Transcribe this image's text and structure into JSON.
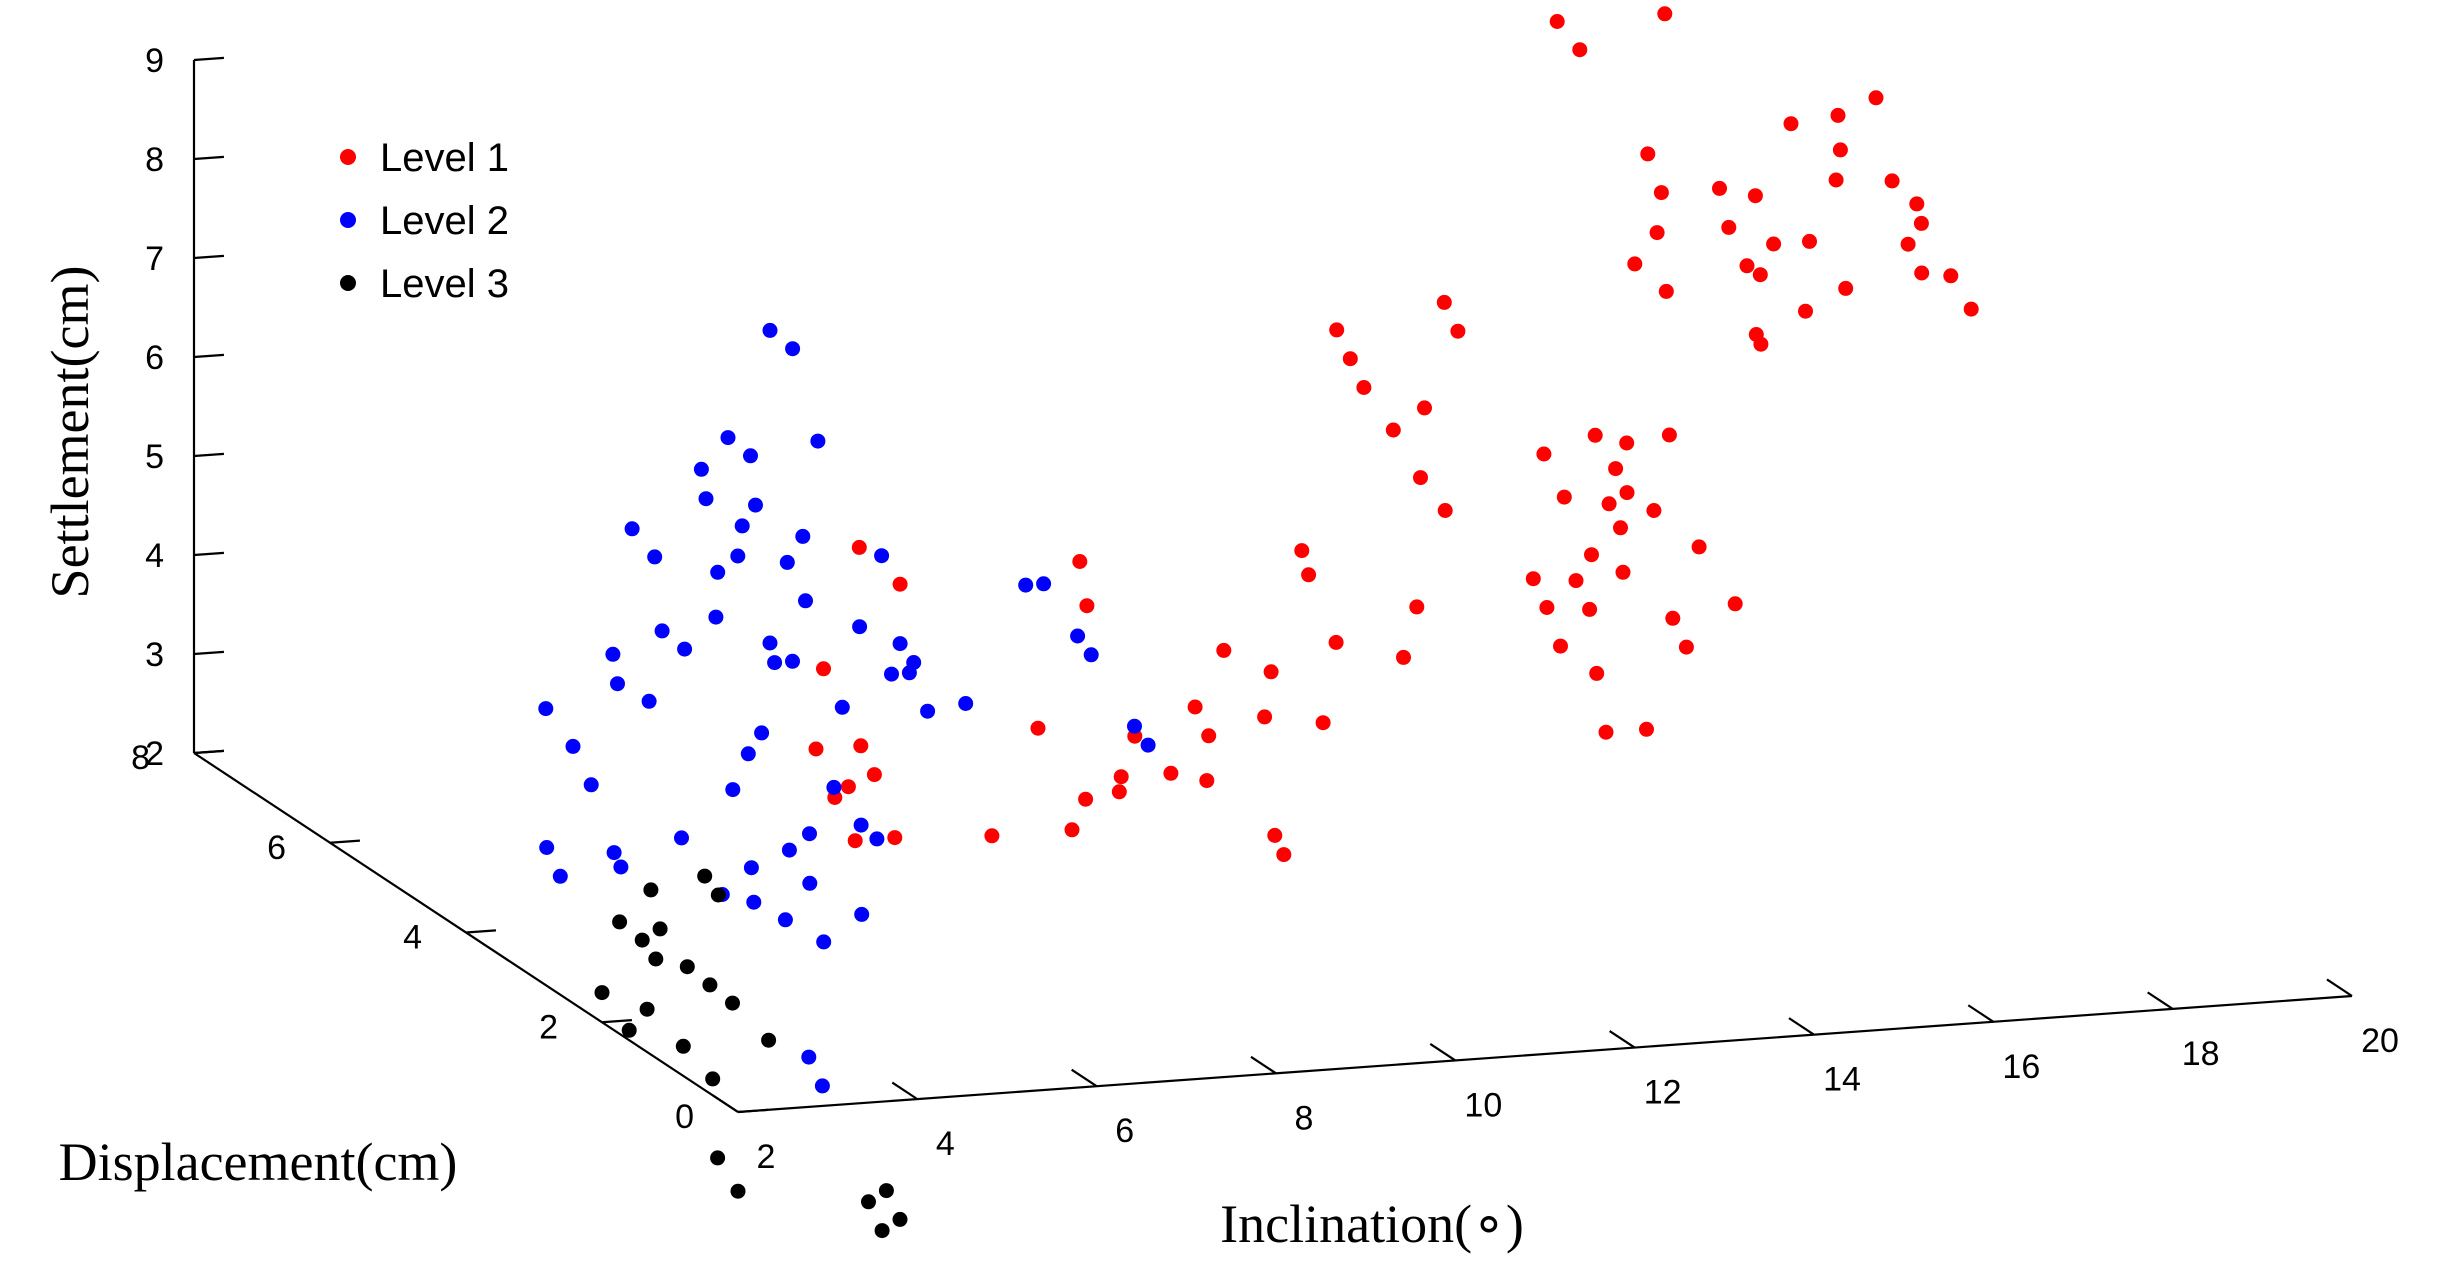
{
  "chart_data": {
    "type": "scatter3d",
    "title": "",
    "xlabel": "Inclination(°)",
    "xlabel_display": "Inclination(∘)",
    "ylabel": "Displacement(cm)",
    "zlabel": "Settlement(cm)",
    "xlim": [
      2,
      20
    ],
    "ylim": [
      0,
      8
    ],
    "zlim": [
      2,
      9
    ],
    "xticks": [
      2,
      4,
      6,
      8,
      10,
      12,
      14,
      16,
      18,
      20
    ],
    "yticks": [
      0,
      2,
      4,
      6,
      8
    ],
    "zticks": [
      2,
      3,
      4,
      5,
      6,
      7,
      8,
      9
    ],
    "grid": false,
    "legend_position": "top-left",
    "series": [
      {
        "name": "Level 1",
        "color": "#ff0000",
        "points": [
          [
            4.9,
            2.2,
            4.1
          ],
          [
            4.9,
            2.4,
            3.9
          ],
          [
            4.9,
            2.1,
            3.6
          ],
          [
            5.6,
            3.6,
            3.8
          ],
          [
            6.1,
            3.6,
            3.8
          ],
          [
            6.1,
            3.4,
            3.6
          ],
          [
            6.1,
            3.1,
            3.1
          ],
          [
            6.5,
            2.2,
            3.5
          ],
          [
            7.2,
            5.6,
            3.6
          ],
          [
            7.6,
            5.6,
            4.8
          ],
          [
            7.6,
            5.0,
            4.7
          ],
          [
            8.0,
            3.5,
            3.9
          ],
          [
            8.0,
            2.8,
            3.5
          ],
          [
            8.0,
            3.0,
            3.1
          ],
          [
            8.3,
            2.7,
            3.6
          ],
          [
            8.7,
            3.2,
            3.5
          ],
          [
            8.7,
            3.0,
            4.0
          ],
          [
            8.8,
            2.6,
            3.8
          ],
          [
            9.0,
            4.1,
            4.8
          ],
          [
            9.2,
            2.6,
            3.7
          ],
          [
            9.3,
            4.6,
            5.0
          ],
          [
            9.2,
            1.6,
            3.6
          ],
          [
            9.3,
            1.6,
            3.4
          ],
          [
            9.6,
            3.3,
            4.1
          ],
          [
            9.6,
            3.1,
            3.9
          ],
          [
            10.3,
            3.8,
            4.4
          ],
          [
            10.3,
            3.2,
            4.0
          ],
          [
            10.6,
            3.5,
            4.3
          ],
          [
            10.8,
            3.0,
            4.0
          ],
          [
            11.4,
            3.6,
            4.5
          ],
          [
            11.7,
            4.5,
            5.0
          ],
          [
            11.7,
            4.4,
            4.8
          ],
          [
            12.0,
            3.4,
            4.4
          ],
          [
            12.3,
            3.6,
            4.8
          ],
          [
            13.0,
            5.7,
            6.6
          ],
          [
            13.0,
            5.5,
            6.4
          ],
          [
            13.0,
            5.3,
            6.2
          ],
          [
            13.1,
            5.0,
            5.9
          ],
          [
            13.1,
            4.6,
            5.6
          ],
          [
            13.3,
            4.5,
            5.3
          ],
          [
            13.6,
            5.2,
            6.0
          ],
          [
            13.6,
            3.6,
            5.0
          ],
          [
            13.6,
            3.4,
            4.8
          ],
          [
            13.6,
            3.2,
            4.5
          ],
          [
            13.5,
            2.4,
            4.0
          ],
          [
            13.7,
            2.8,
            4.4
          ],
          [
            13.8,
            2.2,
            4.1
          ],
          [
            14.0,
            3.3,
            4.8
          ],
          [
            14.0,
            3.5,
            5.0
          ],
          [
            14.2,
            5.5,
            6.6
          ],
          [
            14.2,
            5.7,
            6.8
          ],
          [
            14.4,
            4.5,
            5.8
          ],
          [
            14.4,
            4.2,
            5.5
          ],
          [
            14.4,
            3.8,
            5.1
          ],
          [
            14.6,
            3.6,
            5.0
          ],
          [
            14.7,
            2.8,
            4.6
          ],
          [
            14.7,
            3.0,
            4.8
          ],
          [
            14.8,
            3.9,
            5.3
          ],
          [
            14.9,
            4.2,
            5.4
          ],
          [
            15.1,
            4.2,
            5.5
          ],
          [
            15.2,
            4.5,
            5.6
          ],
          [
            15.2,
            4.8,
            5.8
          ],
          [
            15.4,
            4.6,
            5.8
          ],
          [
            15.4,
            4.2,
            5.3
          ],
          [
            15.6,
            3.8,
            5.1
          ],
          [
            15.7,
            3.4,
            4.7
          ],
          [
            15.8,
            4.5,
            5.9
          ],
          [
            16.4,
            5.8,
            7.0
          ],
          [
            16.6,
            5.6,
            6.8
          ],
          [
            16.8,
            6.0,
            7.2
          ],
          [
            17.0,
            6.4,
            7.8
          ],
          [
            17.0,
            6.2,
            7.5
          ],
          [
            16.9,
            7.6,
            8.6
          ],
          [
            17.0,
            7.4,
            8.4
          ],
          [
            17.2,
            5.0,
            6.5
          ],
          [
            17.3,
            5.2,
            6.5
          ],
          [
            17.5,
            5.6,
            7.0
          ],
          [
            17.6,
            6.0,
            7.2
          ],
          [
            17.8,
            6.4,
            7.4
          ],
          [
            17.8,
            5.8,
            6.8
          ],
          [
            18.0,
            5.4,
            6.6
          ],
          [
            18.1,
            6.0,
            7.0
          ],
          [
            18.2,
            6.4,
            7.3
          ],
          [
            18.1,
            7.8,
            8.8
          ],
          [
            18.1,
            7.6,
            8.6
          ],
          [
            18.5,
            6.0,
            7.0
          ],
          [
            18.6,
            5.6,
            6.7
          ],
          [
            18.9,
            6.8,
            7.8
          ],
          [
            19.1,
            6.4,
            7.4
          ],
          [
            19.3,
            6.6,
            7.6
          ],
          [
            19.5,
            6.9,
            7.8
          ],
          [
            19.6,
            6.0,
            6.9
          ],
          [
            19.6,
            5.8,
            6.7
          ],
          [
            19.8,
            6.5,
            7.3
          ],
          [
            19.9,
            6.2,
            7.0
          ],
          [
            20.0,
            7.0,
            7.9
          ],
          [
            20.0,
            6.4,
            7.1
          ],
          [
            20.0,
            5.9,
            6.6
          ],
          [
            20.0,
            5.6,
            6.4
          ]
        ]
      },
      {
        "name": "Level 2",
        "color": "#0000ff",
        "points": [
          [
            2.9,
            4.0,
            2.8
          ],
          [
            2.9,
            3.8,
            2.6
          ],
          [
            3.5,
            3.8,
            2.8
          ],
          [
            3.5,
            3.7,
            2.7
          ],
          [
            3.8,
            5.2,
            3.6
          ],
          [
            3.8,
            4.8,
            3.4
          ],
          [
            3.7,
            4.4,
            3.2
          ],
          [
            3.7,
            1.2,
            1.9
          ],
          [
            3.7,
            1.0,
            1.7
          ],
          [
            4.1,
            3.6,
            3.0
          ],
          [
            4.1,
            3.0,
            2.7
          ],
          [
            4.3,
            2.8,
            2.7
          ],
          [
            4.5,
            3.1,
            2.9
          ],
          [
            4.5,
            2.6,
            2.6
          ],
          [
            4.7,
            2.3,
            2.5
          ],
          [
            4.6,
            5.2,
            3.8
          ],
          [
            4.7,
            5.4,
            4.0
          ],
          [
            4.8,
            5.0,
            3.7
          ],
          [
            5.0,
            2.9,
            2.8
          ],
          [
            5.0,
            3.2,
            3.0
          ],
          [
            4.9,
            3.9,
            3.3
          ],
          [
            5.2,
            2.4,
            2.7
          ],
          [
            5.3,
            3.3,
            3.1
          ],
          [
            5.3,
            4.2,
            3.5
          ],
          [
            5.6,
            4.4,
            3.6
          ],
          [
            5.4,
            5.6,
            4.1
          ],
          [
            5.5,
            5.4,
            4.0
          ],
          [
            5.8,
            3.6,
            3.4
          ],
          [
            5.8,
            3.2,
            3.2
          ],
          [
            5.9,
            3.1,
            3.1
          ],
          [
            5.9,
            6.7,
            4.6
          ],
          [
            6.0,
            6.5,
            4.4
          ],
          [
            6.2,
            5.0,
            4.0
          ],
          [
            6.3,
            5.2,
            4.1
          ],
          [
            6.0,
            5.6,
            4.2
          ],
          [
            6.4,
            6.1,
            4.4
          ],
          [
            6.5,
            4.4,
            3.8
          ],
          [
            6.4,
            5.0,
            4.0
          ],
          [
            6.7,
            6.2,
            4.5
          ],
          [
            6.8,
            6.8,
            4.8
          ],
          [
            6.9,
            7.0,
            5.0
          ],
          [
            6.9,
            6.4,
            4.7
          ],
          [
            7.0,
            5.6,
            4.3
          ],
          [
            7.1,
            6.0,
            4.5
          ],
          [
            7.3,
            5.2,
            4.2
          ],
          [
            7.2,
            4.6,
            4.0
          ],
          [
            7.3,
            4.2,
            3.8
          ],
          [
            7.2,
            6.6,
            4.8
          ],
          [
            7.5,
            6.3,
            4.6
          ],
          [
            7.6,
            5.0,
            4.1
          ],
          [
            7.6,
            4.8,
            4.0
          ],
          [
            7.4,
            4.6,
            4.0
          ],
          [
            7.8,
            4.3,
            3.8
          ],
          [
            7.5,
            7.4,
            5.1
          ],
          [
            7.6,
            7.2,
            5.0
          ],
          [
            8.0,
            5.8,
            4.6
          ],
          [
            8.2,
            7.0,
            5.2
          ],
          [
            8.5,
            8.1,
            5.8
          ],
          [
            8.6,
            7.9,
            5.7
          ],
          [
            9.0,
            3.4,
            3.9
          ],
          [
            9.0,
            3.2,
            3.8
          ],
          [
            9.0,
            5.0,
            4.6
          ],
          [
            9.2,
            5.0,
            4.6
          ],
          [
            9.2,
            4.5,
            4.3
          ],
          [
            9.2,
            4.3,
            4.2
          ]
        ]
      },
      {
        "name": "Level 3",
        "color": "#000000",
        "points": [
          [
            2.0,
            2.0,
            2.3
          ],
          [
            2.0,
            1.6,
            2.1
          ],
          [
            2.0,
            0.3,
            1.4
          ],
          [
            2.0,
            0.0,
            1.2
          ],
          [
            2.2,
            1.6,
            2.3
          ],
          [
            2.3,
            1.2,
            2.1
          ],
          [
            2.4,
            0.9,
            1.9
          ],
          [
            2.5,
            2.4,
            2.8
          ],
          [
            2.6,
            2.0,
            2.6
          ],
          [
            2.6,
            2.2,
            2.7
          ],
          [
            2.8,
            2.2,
            2.8
          ],
          [
            2.8,
            1.8,
            2.6
          ],
          [
            2.9,
            1.6,
            2.5
          ],
          [
            3.0,
            2.6,
            3.0
          ],
          [
            3.0,
            1.4,
            2.4
          ],
          [
            3.1,
            1.0,
            2.2
          ],
          [
            3.0,
            -0.6,
            1.3
          ],
          [
            3.0,
            -0.8,
            1.1
          ],
          [
            3.2,
            -0.6,
            1.4
          ],
          [
            3.2,
            -0.8,
            1.2
          ],
          [
            3.6,
            2.6,
            3.1
          ],
          [
            3.6,
            2.4,
            3.0
          ]
        ]
      }
    ]
  }
}
